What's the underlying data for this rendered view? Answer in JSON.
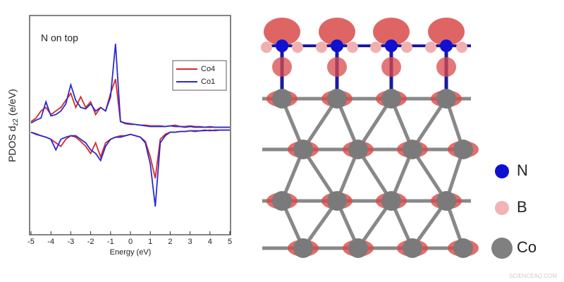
{
  "chart_data": {
    "type": "line",
    "annotation": "N on top",
    "xlabel": "Energy (eV)",
    "ylabel": [
      "PDOS d",
      "z2",
      " (e/eV)"
    ],
    "x": [
      -5,
      -4.75,
      -4.5,
      -4.25,
      -4,
      -3.75,
      -3.5,
      -3.25,
      -3,
      -2.75,
      -2.5,
      -2.25,
      -2,
      -1.75,
      -1.5,
      -1.25,
      -1,
      -0.75,
      -0.5,
      -0.25,
      0,
      0.25,
      0.5,
      0.75,
      1,
      1.25,
      1.5,
      1.75,
      2,
      2.25,
      2.5,
      2.75,
      3,
      3.25,
      3.5,
      3.75,
      4,
      4.25,
      4.5,
      4.75,
      5
    ],
    "xlim": [
      -5,
      5
    ],
    "xticks": [
      -5,
      -4,
      -3,
      -2,
      -1,
      0,
      1,
      2,
      3,
      4,
      5
    ],
    "ylim": [
      -1.5,
      1.6
    ],
    "legend": "upper right",
    "series": [
      {
        "name": "Co4",
        "color": "#d42a2a",
        "values": [
          0.1,
          0.15,
          0.25,
          0.3,
          0.2,
          0.25,
          0.3,
          0.4,
          0.5,
          0.3,
          0.45,
          0.3,
          0.38,
          0.2,
          0.3,
          0.25,
          0.5,
          0.7,
          0.1,
          0.07,
          0.06,
          0.06,
          0.05,
          0.05,
          0.04,
          0.04,
          0.04,
          0.03,
          0.04,
          0.05,
          0.03,
          0.03,
          0.04,
          0.03,
          0.03,
          0.02,
          0.03,
          0.02,
          0.02,
          0.02,
          0.02
        ]
      },
      {
        "name": "Co1",
        "color": "#2a2ad0",
        "values": [
          0.08,
          0.12,
          0.15,
          0.38,
          0.18,
          0.2,
          0.25,
          0.35,
          0.62,
          0.4,
          0.3,
          0.28,
          0.35,
          0.25,
          0.3,
          0.25,
          0.45,
          1.2,
          0.1,
          0.08,
          0.07,
          0.06,
          0.05,
          0.04,
          0.03,
          0.03,
          0.03,
          0.03,
          0.04,
          0.03,
          0.03,
          0.02,
          0.03,
          0.02,
          0.02,
          0.02,
          0.02,
          0.02,
          0.02,
          0.02,
          0.02
        ]
      },
      {
        "color": "#d42a2a",
        "values": [
          -0.05,
          -0.07,
          -0.1,
          -0.12,
          -0.15,
          -0.2,
          -0.25,
          -0.15,
          -0.1,
          -0.12,
          -0.18,
          -0.25,
          -0.35,
          -0.2,
          -0.4,
          -0.2,
          -0.15,
          -0.12,
          -0.1,
          -0.1,
          -0.08,
          -0.1,
          -0.12,
          -0.18,
          -0.4,
          -0.7,
          -0.15,
          -0.08,
          -0.05,
          -0.05,
          -0.04,
          -0.04,
          -0.03,
          -0.04,
          -0.03,
          -0.03,
          -0.02,
          -0.03,
          -0.02,
          -0.02,
          -0.02
        ]
      },
      {
        "color": "#2a2ad0",
        "values": [
          -0.05,
          -0.08,
          -0.1,
          -0.12,
          -0.15,
          -0.3,
          -0.15,
          -0.12,
          -0.1,
          -0.1,
          -0.15,
          -0.2,
          -0.3,
          -0.35,
          -0.45,
          -0.25,
          -0.15,
          -0.12,
          -0.12,
          -0.1,
          -0.08,
          -0.1,
          -0.12,
          -0.2,
          -0.5,
          -1.1,
          -0.2,
          -0.1,
          -0.05,
          -0.05,
          -0.04,
          -0.04,
          -0.03,
          -0.03,
          -0.03,
          -0.02,
          -0.03,
          -0.02,
          -0.02,
          -0.02,
          -0.02
        ]
      }
    ]
  },
  "structure_legend": [
    "N",
    "B",
    "Co"
  ],
  "watermark": "SCIENCEAQ.COM"
}
